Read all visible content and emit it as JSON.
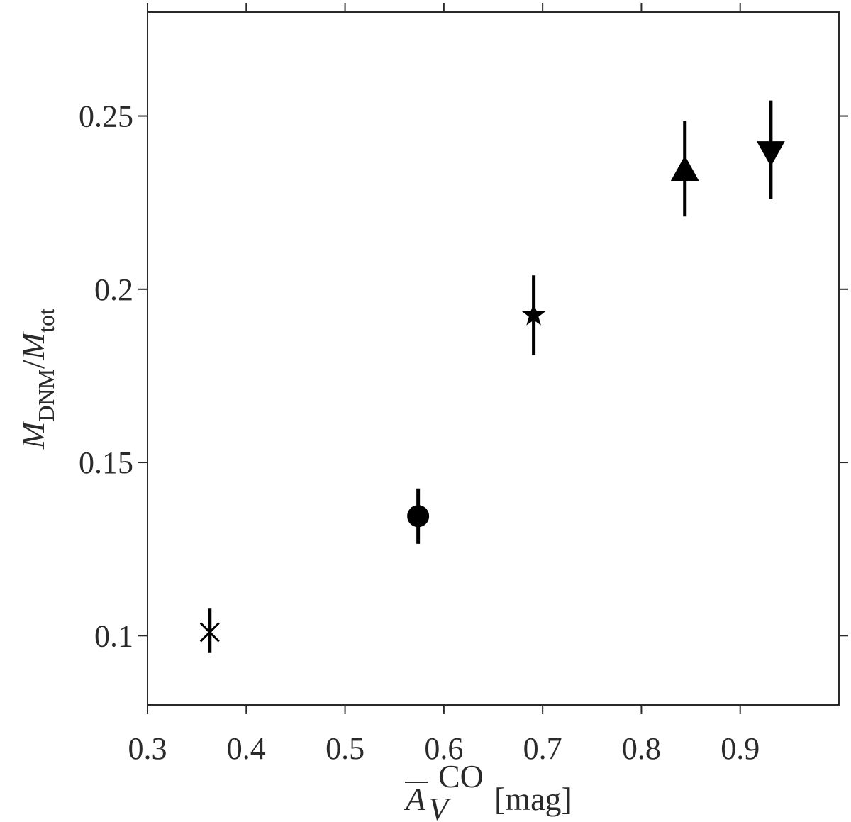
{
  "chart_data": {
    "type": "scatter",
    "title": "",
    "xlabel": {
      "main": "A",
      "sub": "V",
      "sup": "CO",
      "unit": "[mag]"
    },
    "ylabel": {
      "main1": "M",
      "sub1": "DNM",
      "slash": "/",
      "main2": "M",
      "sub2": "tot"
    },
    "xlim": [
      0.3,
      1.0
    ],
    "ylim": [
      0.08,
      0.28
    ],
    "xticks": [
      0.3,
      0.4,
      0.5,
      0.6,
      0.7,
      0.8,
      0.9
    ],
    "xtick_labels": [
      "0.3",
      "0.4",
      "0.5",
      "0.6",
      "0.7",
      "0.8",
      "0.9"
    ],
    "yticks": [
      0.1,
      0.15,
      0.2,
      0.25
    ],
    "ytick_labels": [
      "0.1",
      "0.15",
      "0.2",
      "0.25"
    ],
    "grid": false,
    "points": [
      {
        "marker": "x",
        "x": 0.363,
        "y": 0.101,
        "err_low": 0.095,
        "err_high": 0.108
      },
      {
        "marker": "circle",
        "x": 0.574,
        "y": 0.1345,
        "err_low": 0.1265,
        "err_high": 0.1425
      },
      {
        "marker": "star",
        "x": 0.691,
        "y": 0.1925,
        "err_low": 0.181,
        "err_high": 0.204
      },
      {
        "marker": "triangle-up",
        "x": 0.844,
        "y": 0.2345,
        "err_low": 0.221,
        "err_high": 0.2485
      },
      {
        "marker": "triangle-down",
        "x": 0.931,
        "y": 0.2395,
        "err_low": 0.226,
        "err_high": 0.2545
      }
    ]
  }
}
